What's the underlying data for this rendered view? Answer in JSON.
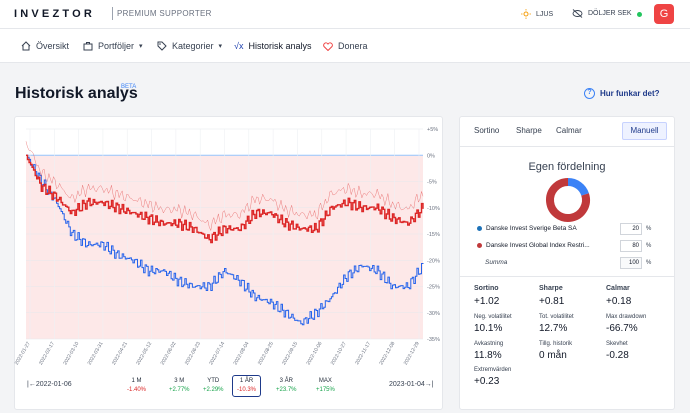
{
  "topbar": {
    "logo": "INVEZTOR",
    "premium": "PREMIUM SUPPORTER",
    "theme_label": "LJUS",
    "hide_label": "DÖLJER SEK",
    "avatar_letter": "G"
  },
  "nav": {
    "items": [
      "Översikt",
      "Portföljer",
      "Kategorier",
      "Historisk analys",
      "Donera"
    ]
  },
  "page": {
    "title": "Historisk analys",
    "beta": "BETA",
    "help": "Hur funkar det?"
  },
  "chart_data": {
    "type": "line",
    "y_ticks": [
      "+5%",
      "0%",
      "-5%",
      "-10%",
      "-15%",
      "-20%",
      "-25%",
      "-30%",
      "-35%"
    ],
    "ylim": [
      -35,
      5
    ],
    "x_ticks": [
      "2022-01-27",
      "2022-02-17",
      "2022-03-10",
      "2022-03-31",
      "2022-04-21",
      "2022-05-12",
      "2022-06-02",
      "2022-06-23",
      "2022-07-14",
      "2022-08-04",
      "2022-08-25",
      "2022-09-15",
      "2022-10-06",
      "2022-10-27",
      "2022-11-17",
      "2022-12-08",
      "2022-12-29"
    ],
    "series": [
      {
        "color": "#2563eb",
        "values": [
          0,
          -5,
          -9,
          -15,
          -17,
          -17,
          -19,
          -20,
          -22,
          -22,
          -24,
          -25,
          -25,
          -22,
          -24,
          -27,
          -28,
          -30,
          -32,
          -30,
          -27,
          -23,
          -21,
          -22,
          -25,
          -25,
          -21
        ]
      },
      {
        "color": "#dc2626",
        "values": [
          0,
          -6,
          -8,
          -11,
          -9,
          -9,
          -10,
          -11,
          -12,
          -13,
          -13,
          -14,
          -16,
          -14,
          -14,
          -11,
          -11,
          -13,
          -14,
          -14,
          -10,
          -9,
          -10,
          -10,
          -12,
          -13,
          -10
        ]
      }
    ]
  },
  "period": {
    "start": "|←2022-01-06",
    "end": "2023-01-04→|",
    "items": [
      {
        "label": "1 M",
        "value": "-1.40%"
      },
      {
        "label": "3 M",
        "value": "+2.77%"
      },
      {
        "label": "YTD",
        "value": "+2.29%"
      },
      {
        "label": "1 ÅR",
        "value": "-10.3%"
      },
      {
        "label": "3 ÅR",
        "value": "+23.7%"
      },
      {
        "label": "MAX",
        "value": "+175%"
      }
    ]
  },
  "side": {
    "tabs": [
      "Sortino",
      "Sharpe",
      "Calmar"
    ],
    "active_tab": "Manuell",
    "egen": "Egen fördelning",
    "donut": [
      {
        "color": "#3b82f6",
        "share": 0.2
      },
      {
        "color": "#c0393b",
        "share": 0.8
      }
    ],
    "funds": [
      {
        "name": "Danske Invest Sverige Beta SA",
        "value": "20",
        "pct": "%"
      },
      {
        "name": "Danske Invest Global Index Restri...",
        "value": "80",
        "pct": "%"
      }
    ],
    "summa": "Summa",
    "summa_value": "100",
    "summa_pct": "%",
    "metrics": [
      {
        "label": "Sortino",
        "value": "+1.02"
      },
      {
        "label": "Sharpe",
        "value": "+0.81"
      },
      {
        "label": "Calmar",
        "value": "+0.18"
      },
      {
        "label": "Neg. volatilitet",
        "value": "10.1%"
      },
      {
        "label": "Tot. volatilitet",
        "value": "12.7%"
      },
      {
        "label": "Max drawdown",
        "value": "-66.7%"
      },
      {
        "label": "Avkastning",
        "value": "11.8%"
      },
      {
        "label": "Tillg. historik",
        "value": "0 mån"
      },
      {
        "label": "Skevhet",
        "value": "-0.28"
      },
      {
        "label": "Extremvärden",
        "value": "+0.23"
      }
    ]
  }
}
